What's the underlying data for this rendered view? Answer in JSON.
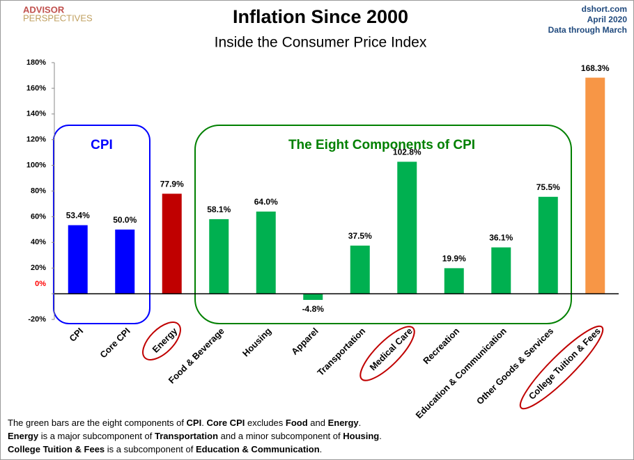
{
  "chart_data": {
    "type": "bar",
    "title": "Inflation Since 2000",
    "subtitle": "Inside the Consumer Price Index",
    "logo": [
      "ADVISOR",
      "PERSPECTIVES"
    ],
    "source": [
      "dshort.com",
      "April 2020",
      "Data through March"
    ],
    "categories": [
      "CPI",
      "Core CPI",
      "Energy",
      "Food & Beverage",
      "Housing",
      "Apparel",
      "Transportation",
      "Medical Care",
      "Recreation",
      "Education & Communication",
      "Other Goods & Services",
      "College Tuition & Fees"
    ],
    "values": [
      53.4,
      50.0,
      77.9,
      58.1,
      64.0,
      -4.8,
      37.5,
      102.8,
      19.9,
      36.1,
      75.5,
      168.3
    ],
    "value_labels": [
      "53.4%",
      "50.0%",
      "77.9%",
      "58.1%",
      "64.0%",
      "-4.8%",
      "37.5%",
      "102.8%",
      "19.9%",
      "36.1%",
      "75.5%",
      "168.3%"
    ],
    "colors": [
      "#0000ff",
      "#0000ff",
      "#c00000",
      "#00b050",
      "#00b050",
      "#00b050",
      "#00b050",
      "#00b050",
      "#00b050",
      "#00b050",
      "#00b050",
      "#f79646"
    ],
    "ylim": [
      -20,
      180
    ],
    "yticks": [
      {
        "value": -20,
        "label": "-20%"
      },
      {
        "value": 0,
        "label": "0%"
      },
      {
        "value": 20,
        "label": "20%"
      },
      {
        "value": 40,
        "label": "40%"
      },
      {
        "value": 60,
        "label": "60%"
      },
      {
        "value": 80,
        "label": "80%"
      },
      {
        "value": 100,
        "label": "100%"
      },
      {
        "value": 120,
        "label": "120%"
      },
      {
        "value": 140,
        "label": "140%"
      },
      {
        "value": 160,
        "label": "160%"
      },
      {
        "value": 180,
        "label": "180%"
      }
    ],
    "annotations": [
      "CPI",
      "The Eight Components of CPI"
    ],
    "footnote": [
      [
        {
          "text": "The green bars are the eight components of "
        },
        {
          "text": "CPI",
          "bold": true
        },
        {
          "text": ". "
        },
        {
          "text": "Core CPI",
          "bold": true
        },
        {
          "text": " excludes "
        },
        {
          "text": "Food",
          "bold": true
        },
        {
          "text": " and "
        },
        {
          "text": "Energy",
          "bold": true
        },
        {
          "text": "."
        }
      ],
      [
        {
          "text": "Energy",
          "bold": true
        },
        {
          "text": " is a  major subcomponent of "
        },
        {
          "text": "Transportation",
          "bold": true
        },
        {
          "text": " and a minor subcomponent of "
        },
        {
          "text": "Housing",
          "bold": true
        },
        {
          "text": "."
        }
      ],
      [
        {
          "text": "College Tuition & Fees",
          "bold": true
        },
        {
          "text": " is a subcomponent of "
        },
        {
          "text": "Education & Communication",
          "bold": true
        },
        {
          "text": "."
        }
      ]
    ]
  }
}
